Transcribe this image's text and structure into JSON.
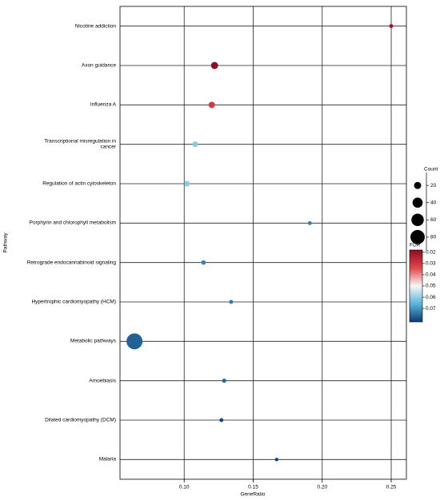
{
  "chart_data": {
    "type": "bubble",
    "x_label": "GeneRatio",
    "y_label": "Pathway",
    "categories": [
      "Nicotine addiction",
      "Axon guidance",
      "Influenza A",
      "Transcriptional misregulation in\ncancer",
      "Regulation of actin cytoskeleton",
      "Porphyrin and chlorophyll metabolism",
      "Retrograde endocannabinoid signaling",
      "Hypertrophic cardiomyopathy (HCM)",
      "Metabolic pathways",
      "Amoebiasis",
      "Dilated cardiomyopathy (DCM)",
      "Malaria"
    ],
    "values": [
      0.25,
      0.122,
      0.12,
      0.108,
      0.102,
      0.191,
      0.114,
      0.134,
      0.064,
      0.129,
      0.127,
      0.167
    ],
    "count": [
      6,
      20,
      16,
      12,
      12,
      6,
      8,
      6,
      100,
      7,
      6,
      5
    ],
    "fdr": [
      0.02,
      0.018,
      0.031,
      0.061,
      0.061,
      0.073,
      0.073,
      0.074,
      0.077,
      0.076,
      0.08,
      0.081
    ],
    "xlim": [
      0.0535,
      0.261
    ],
    "xticks": [
      {
        "value": 0.1,
        "label": "0.10"
      },
      0.15,
      {
        "value": 0.2,
        "label": "0.20"
      },
      0.25
    ],
    "grid": true,
    "size_title": "Count",
    "sizelim": [
      5,
      95
    ],
    "size_ticks": [
      20,
      40,
      60,
      80
    ],
    "color_title": "FDR",
    "colorlim": [
      0.018,
      0.082
    ],
    "color_ticks": [
      0.02,
      0.03,
      0.04,
      0.05,
      0.06,
      0.07
    ],
    "colorscale": [
      "#8e0c25",
      "#e0474a",
      "#f7f7f7",
      "#5ab4d9",
      "#0a3c72"
    ]
  }
}
